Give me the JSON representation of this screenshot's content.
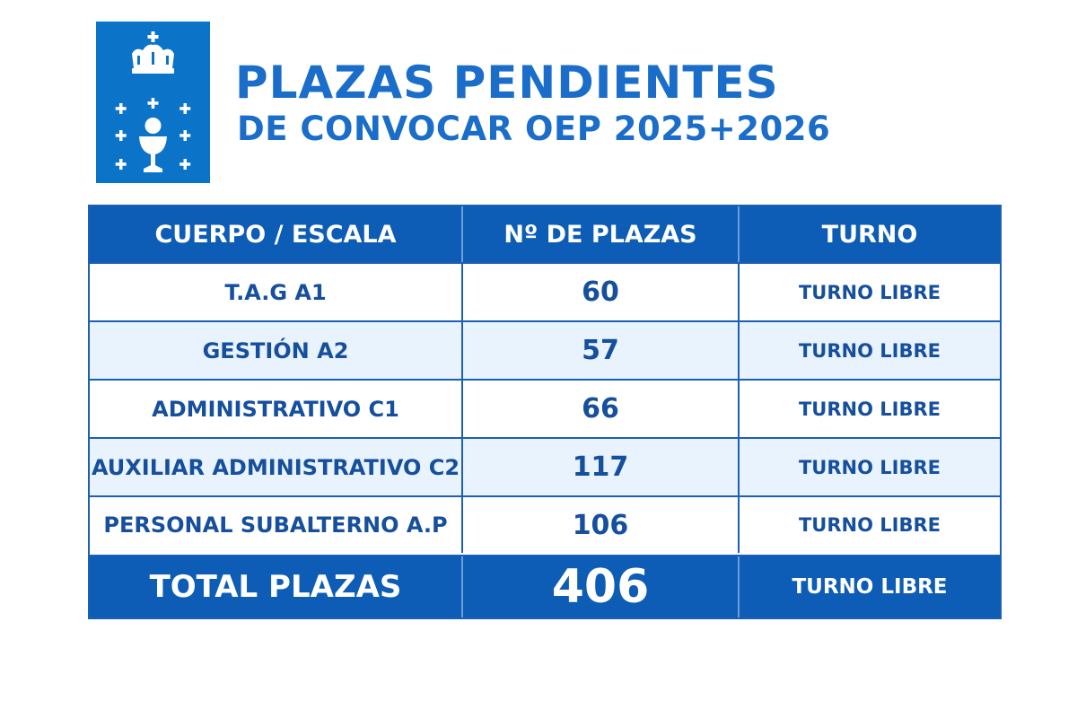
{
  "header": {
    "emblem_icon": "galicia-coat-of-arms-icon",
    "title_line1": "PLAZAS PENDIENTES",
    "title_line2": "DE CONVOCAR OEP 2025+2026"
  },
  "table": {
    "columns": [
      "CUERPO / ESCALA",
      "Nº DE PLAZAS",
      "TURNO"
    ],
    "rows": [
      {
        "cuerpo": "T.A.G A1",
        "plazas": "60",
        "turno": "TURNO LIBRE"
      },
      {
        "cuerpo": "GESTIÓN A2",
        "plazas": "57",
        "turno": "TURNO LIBRE"
      },
      {
        "cuerpo": "ADMINISTRATIVO C1",
        "plazas": "66",
        "turno": "TURNO LIBRE"
      },
      {
        "cuerpo": "AUXILIAR ADMINISTRATIVO C2",
        "plazas": "117",
        "turno": "TURNO LIBRE"
      },
      {
        "cuerpo": "PERSONAL SUBALTERNO A.P",
        "plazas": "106",
        "turno": "TURNO LIBRE"
      }
    ],
    "total": {
      "label": "TOTAL PLAZAS",
      "plazas": "406",
      "turno": "TURNO LIBRE"
    }
  },
  "colors": {
    "brand_blue": "#0d5cb6",
    "title_blue": "#1a6dc9",
    "emblem_blue": "#0b74c9",
    "row_alt": "#e9f3fd"
  }
}
